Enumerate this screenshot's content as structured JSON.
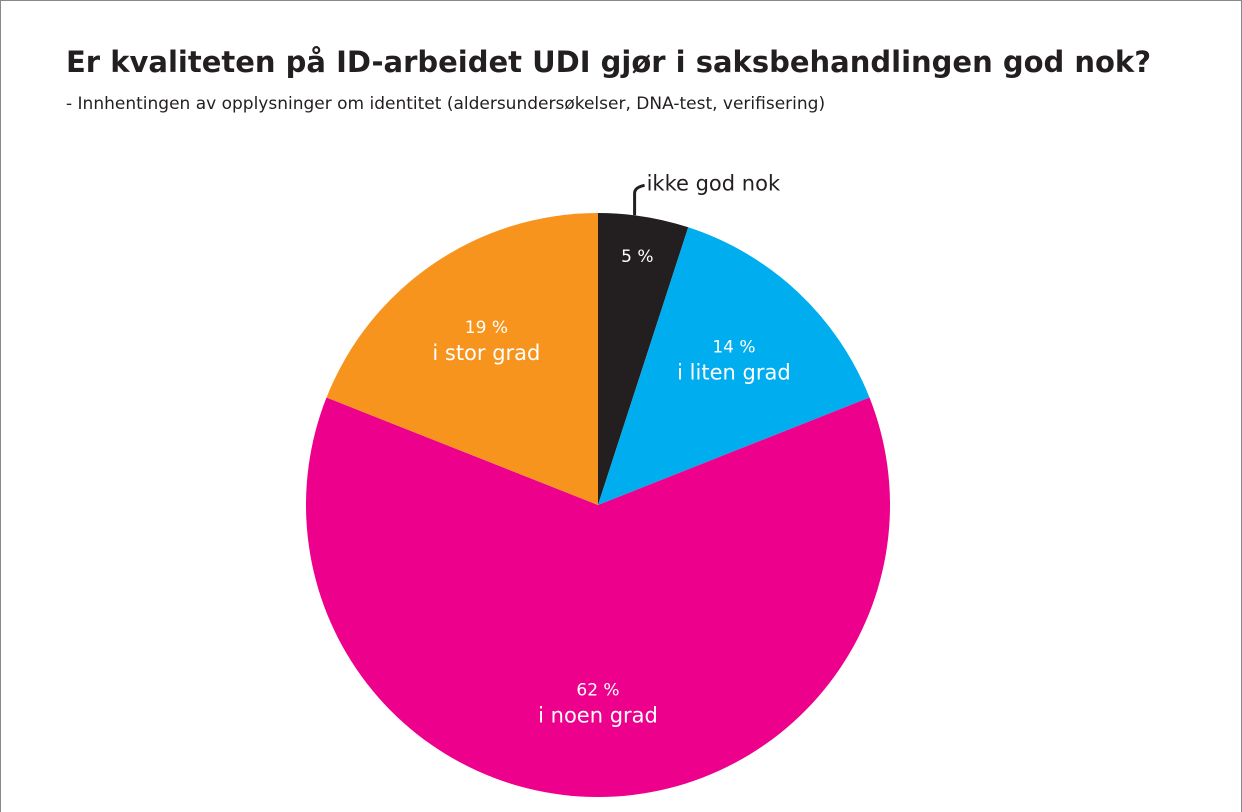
{
  "chart_data": {
    "type": "pie",
    "title": "Er kvaliteten på ID-arbeidet UDI gjør i saksbehandlingen god nok?",
    "subtitle": "- Innhentingen av opplysninger om identitet (aldersundersøkelser, DNA-test, verifisering)",
    "categories": [
      "ikke god nok",
      "i liten grad",
      "i noen grad",
      "i stor grad"
    ],
    "values": [
      5,
      14,
      62,
      19
    ],
    "value_labels": [
      "5 %",
      "14 %",
      "62 %",
      "19 %"
    ],
    "colors": [
      "#231f20",
      "#00aeef",
      "#ec008c",
      "#f7941d"
    ]
  }
}
